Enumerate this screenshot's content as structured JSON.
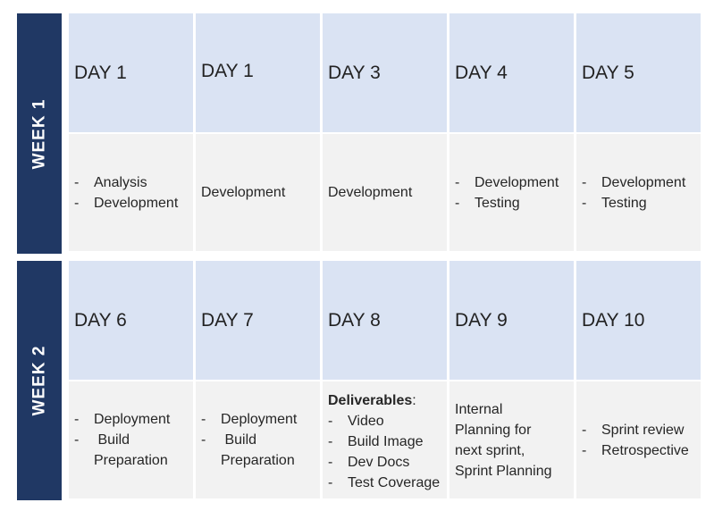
{
  "weeks": [
    {
      "label": "WEEK 1",
      "days": [
        {
          "title": "DAY 1",
          "items": [
            "Analysis",
            "Development"
          ]
        },
        {
          "title": "DAY 1",
          "text": "Development"
        },
        {
          "title": "DAY 3",
          "text": "Development"
        },
        {
          "title": "DAY 4",
          "items": [
            "Development",
            "Testing"
          ]
        },
        {
          "title": "DAY 5",
          "items": [
            "Development",
            "Testing"
          ]
        }
      ]
    },
    {
      "label": "WEEK 2",
      "days": [
        {
          "title": "DAY 6",
          "items": [
            "Deployment",
            " Build Preparation"
          ]
        },
        {
          "title": "DAY 7",
          "items": [
            "Deployment",
            " Build Preparation"
          ]
        },
        {
          "title": "DAY 8",
          "heading": "Deliverables",
          "heading_suffix": ":",
          "items": [
            "Video",
            "Build Image",
            "Dev Docs",
            "Test Coverage"
          ]
        },
        {
          "title": "DAY 9",
          "lines": [
            "Internal",
            "Planning for",
            "next sprint,",
            "Sprint Planning"
          ]
        },
        {
          "title": "DAY 10",
          "items": [
            "Sprint review",
            "Retrospective"
          ]
        }
      ]
    }
  ]
}
